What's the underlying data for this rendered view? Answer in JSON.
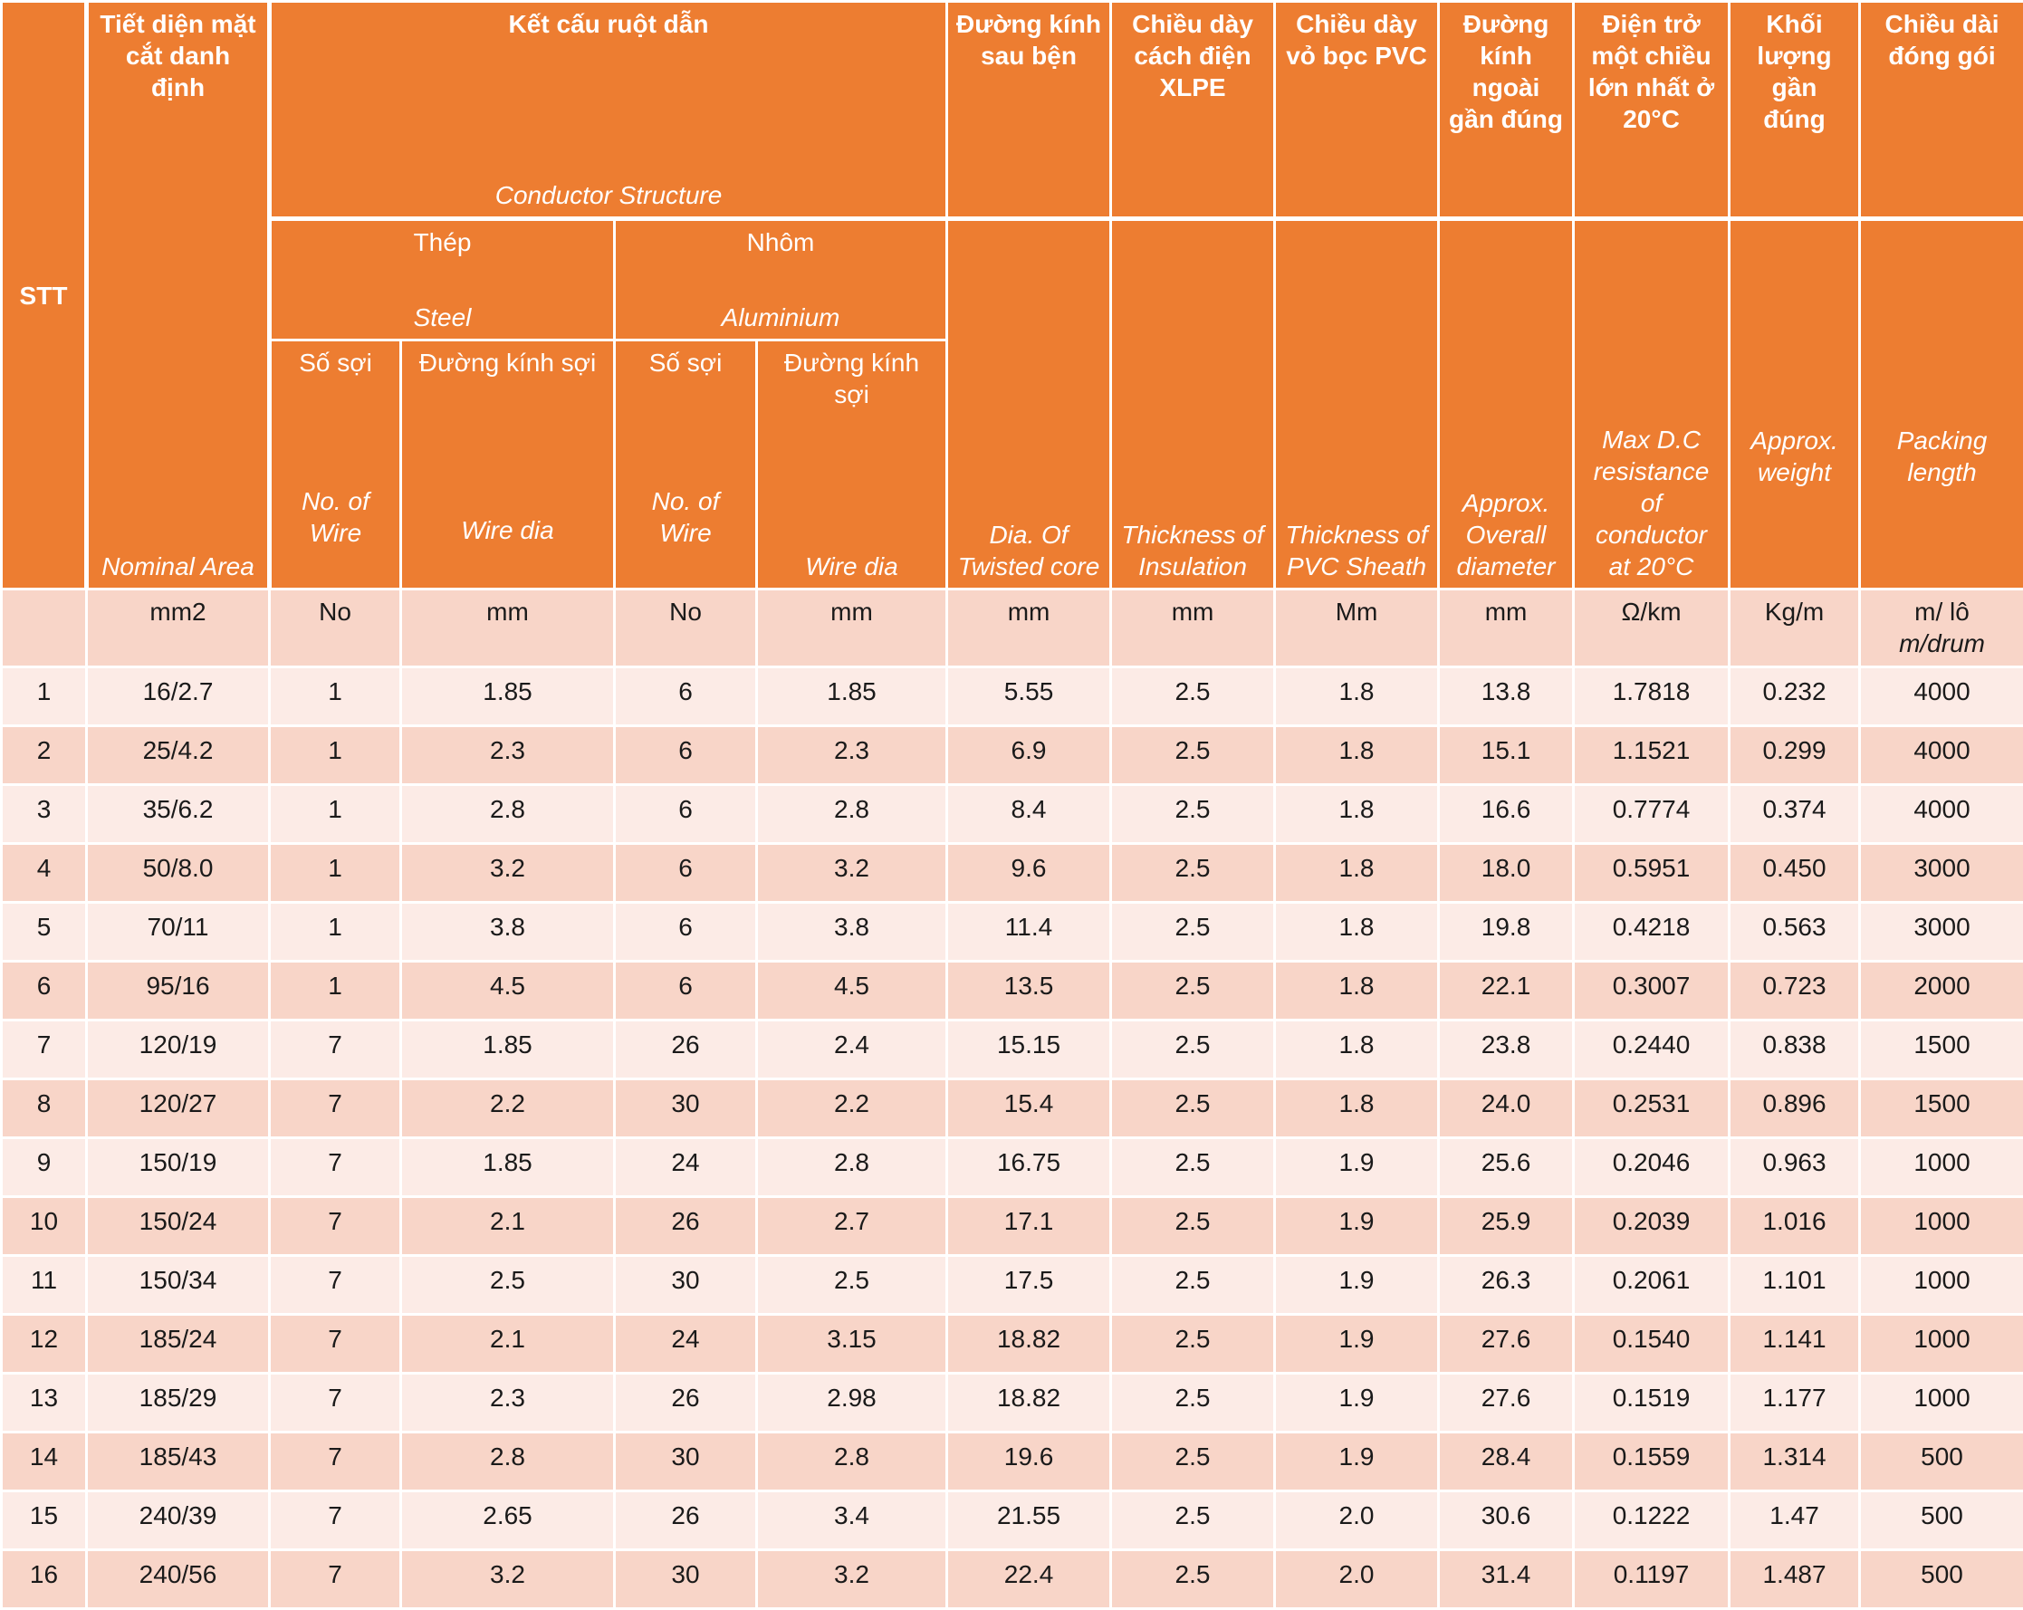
{
  "header": {
    "stt": "STT",
    "nominal": {
      "vi": "Tiết diện mặt cắt danh định",
      "en": "Nominal Area"
    },
    "conductor": {
      "vi": "Kết cấu ruột dẫn",
      "en": "Conductor Structure"
    },
    "steel": {
      "vi": "Thép",
      "en": "Steel"
    },
    "aluminium": {
      "vi": "Nhôm",
      "en": "Aluminium"
    },
    "steel_no": {
      "vi": "Số sợi",
      "en": "No. of Wire"
    },
    "steel_dia": {
      "vi": "Đường kính sợi",
      "en": "Wire dia"
    },
    "al_no": {
      "vi": "Số sợi",
      "en": "No. of Wire"
    },
    "al_dia": {
      "vi": "Đường kính sợi",
      "en": "Wire dia"
    },
    "twisted": {
      "vi": "Đường kính sau bện",
      "en": "Dia. Of Twisted core"
    },
    "insulation": {
      "vi": "Chiều dày cách điện XLPE",
      "en": "Thickness of Insulation"
    },
    "sheath": {
      "vi": "Chiều dày vỏ bọc PVC",
      "en": "Thickness of PVC Sheath"
    },
    "overall": {
      "vi": "Đường kính ngoài gần đúng",
      "en": "Approx. Overall diameter"
    },
    "resistance": {
      "vi": "Điện trở một chiều lớn nhất ở 20°C",
      "en": "Max D.C resistance of conductor at 20°C"
    },
    "weight": {
      "vi": "Khối lượng gần đúng",
      "en": "Approx. weight"
    },
    "packing": {
      "vi": "Chiều dài đóng gói",
      "en": "Packing length"
    }
  },
  "units": {
    "stt": "",
    "nominal": "mm2",
    "steel_no": "No",
    "steel_dia": "mm",
    "al_no": "No",
    "al_dia": "mm",
    "twisted": "mm",
    "insulation": "mm",
    "sheath": "Mm",
    "overall": "mm",
    "resistance": "Ω/km",
    "weight": "Kg/m",
    "packing_vi": "m/ lô",
    "packing_en": "m/drum"
  },
  "rows": [
    [
      "1",
      "16/2.7",
      "1",
      "1.85",
      "6",
      "1.85",
      "5.55",
      "2.5",
      "1.8",
      "13.8",
      "1.7818",
      "0.232",
      "4000"
    ],
    [
      "2",
      "25/4.2",
      "1",
      "2.3",
      "6",
      "2.3",
      "6.9",
      "2.5",
      "1.8",
      "15.1",
      "1.1521",
      "0.299",
      "4000"
    ],
    [
      "3",
      "35/6.2",
      "1",
      "2.8",
      "6",
      "2.8",
      "8.4",
      "2.5",
      "1.8",
      "16.6",
      "0.7774",
      "0.374",
      "4000"
    ],
    [
      "4",
      "50/8.0",
      "1",
      "3.2",
      "6",
      "3.2",
      "9.6",
      "2.5",
      "1.8",
      "18.0",
      "0.5951",
      "0.450",
      "3000"
    ],
    [
      "5",
      "70/11",
      "1",
      "3.8",
      "6",
      "3.8",
      "11.4",
      "2.5",
      "1.8",
      "19.8",
      "0.4218",
      "0.563",
      "3000"
    ],
    [
      "6",
      "95/16",
      "1",
      "4.5",
      "6",
      "4.5",
      "13.5",
      "2.5",
      "1.8",
      "22.1",
      "0.3007",
      "0.723",
      "2000"
    ],
    [
      "7",
      "120/19",
      "7",
      "1.85",
      "26",
      "2.4",
      "15.15",
      "2.5",
      "1.8",
      "23.8",
      "0.2440",
      "0.838",
      "1500"
    ],
    [
      "8",
      "120/27",
      "7",
      "2.2",
      "30",
      "2.2",
      "15.4",
      "2.5",
      "1.8",
      "24.0",
      "0.2531",
      "0.896",
      "1500"
    ],
    [
      "9",
      "150/19",
      "7",
      "1.85",
      "24",
      "2.8",
      "16.75",
      "2.5",
      "1.9",
      "25.6",
      "0.2046",
      "0.963",
      "1000"
    ],
    [
      "10",
      "150/24",
      "7",
      "2.1",
      "26",
      "2.7",
      "17.1",
      "2.5",
      "1.9",
      "25.9",
      "0.2039",
      "1.016",
      "1000"
    ],
    [
      "11",
      "150/34",
      "7",
      "2.5",
      "30",
      "2.5",
      "17.5",
      "2.5",
      "1.9",
      "26.3",
      "0.2061",
      "1.101",
      "1000"
    ],
    [
      "12",
      "185/24",
      "7",
      "2.1",
      "24",
      "3.15",
      "18.82",
      "2.5",
      "1.9",
      "27.6",
      "0.1540",
      "1.141",
      "1000"
    ],
    [
      "13",
      "185/29",
      "7",
      "2.3",
      "26",
      "2.98",
      "18.82",
      "2.5",
      "1.9",
      "27.6",
      "0.1519",
      "1.177",
      "1000"
    ],
    [
      "14",
      "185/43",
      "7",
      "2.8",
      "30",
      "2.8",
      "19.6",
      "2.5",
      "1.9",
      "28.4",
      "0.1559",
      "1.314",
      "500"
    ],
    [
      "15",
      "240/39",
      "7",
      "2.65",
      "26",
      "3.4",
      "21.55",
      "2.5",
      "2.0",
      "30.6",
      "0.1222",
      "1.47",
      "500"
    ],
    [
      "16",
      "240/56",
      "7",
      "3.2",
      "30",
      "3.2",
      "22.4",
      "2.5",
      "2.0",
      "31.4",
      "0.1197",
      "1.487",
      "500"
    ]
  ]
}
